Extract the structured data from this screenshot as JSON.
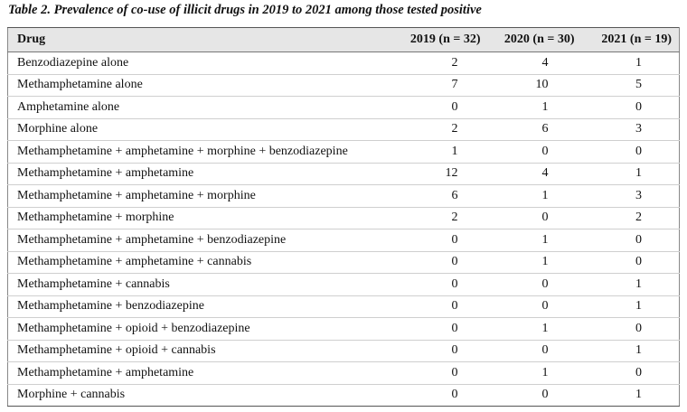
{
  "table": {
    "caption": "Table 2. Prevalence of co-use of illicit drugs in 2019 to 2021 among those tested positive",
    "headers": {
      "drug": "Drug",
      "y2019": "2019 (n = 32)",
      "y2020": "2020 (n = 30)",
      "y2021": "2021 (n = 19)"
    },
    "rows": [
      {
        "drug": "Benzodiazepine alone",
        "y2019": "2",
        "y2020": "4",
        "y2021": "1"
      },
      {
        "drug": "Methamphetamine alone",
        "y2019": "7",
        "y2020": "10",
        "y2021": "5"
      },
      {
        "drug": "Amphetamine alone",
        "y2019": "0",
        "y2020": "1",
        "y2021": "0"
      },
      {
        "drug": "Morphine alone",
        "y2019": "2",
        "y2020": "6",
        "y2021": "3"
      },
      {
        "drug": "Methamphetamine + amphetamine + morphine + benzodiazepine",
        "y2019": "1",
        "y2020": "0",
        "y2021": "0"
      },
      {
        "drug": "Methamphetamine + amphetamine",
        "y2019": "12",
        "y2020": "4",
        "y2021": "1"
      },
      {
        "drug": "Methamphetamine + amphetamine + morphine",
        "y2019": "6",
        "y2020": "1",
        "y2021": "3"
      },
      {
        "drug": "Methamphetamine + morphine",
        "y2019": "2",
        "y2020": "0",
        "y2021": "2"
      },
      {
        "drug": "Methamphetamine + amphetamine + benzodiazepine",
        "y2019": "0",
        "y2020": "1",
        "y2021": "0"
      },
      {
        "drug": "Methamphetamine + amphetamine + cannabis",
        "y2019": "0",
        "y2020": "1",
        "y2021": "0"
      },
      {
        "drug": "Methamphetamine + cannabis",
        "y2019": "0",
        "y2020": "0",
        "y2021": "1"
      },
      {
        "drug": "Methamphetamine + benzodiazepine",
        "y2019": "0",
        "y2020": "0",
        "y2021": "1"
      },
      {
        "drug": "Methamphetamine + opioid + benzodiazepine",
        "y2019": "0",
        "y2020": "1",
        "y2021": "0"
      },
      {
        "drug": "Methamphetamine + opioid + cannabis",
        "y2019": "0",
        "y2020": "0",
        "y2021": "1"
      },
      {
        "drug": "Methamphetamine + amphetamine",
        "y2019": "0",
        "y2020": "1",
        "y2021": "0"
      },
      {
        "drug": "Morphine + cannabis",
        "y2019": "0",
        "y2020": "0",
        "y2021": "1"
      }
    ]
  }
}
